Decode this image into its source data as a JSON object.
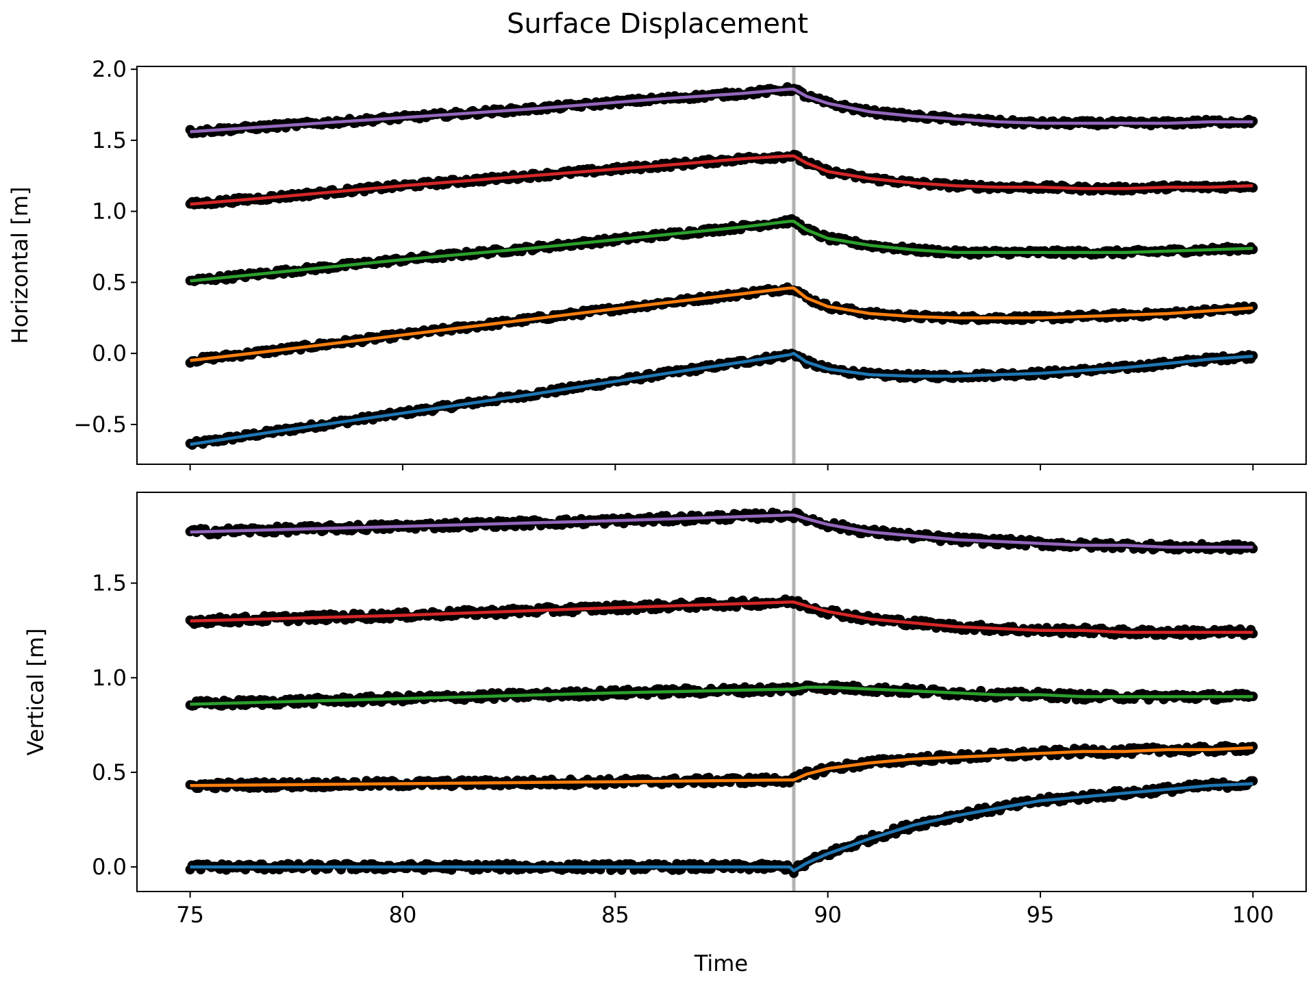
{
  "chart_data": {
    "title": "Surface Displacement",
    "xlabel": "Time",
    "xlim": [
      73.75,
      101.25
    ],
    "xticks": [
      75,
      80,
      85,
      90,
      95,
      100
    ],
    "event_line": {
      "x": 89.2,
      "color": "#b3b3b3"
    },
    "marker_color": "#000000",
    "panels": [
      {
        "type": "line",
        "ylabel": "Horizontal [m]",
        "ylim": [
          -0.78,
          2.02
        ],
        "yticks": [
          -0.5,
          0.0,
          0.5,
          1.0,
          1.5,
          2.0
        ],
        "ytick_labels": [
          "−0.5",
          "0.0",
          "0.5",
          "1.0",
          "1.5",
          "2.0"
        ],
        "series": [
          {
            "color": "#1f77b4",
            "x": [
              75,
              77,
              80,
              83,
              86,
              88,
              89.1,
              89.2,
              89.5,
              90,
              91,
              92,
              93,
              94,
              95,
              96,
              97,
              98,
              99,
              100
            ],
            "values": [
              -0.64,
              -0.55,
              -0.42,
              -0.29,
              -0.15,
              -0.06,
              -0.01,
              0.0,
              -0.06,
              -0.11,
              -0.15,
              -0.16,
              -0.16,
              -0.15,
              -0.14,
              -0.12,
              -0.1,
              -0.07,
              -0.04,
              -0.02
            ]
          },
          {
            "color": "#ff7f0e",
            "x": [
              75,
              77,
              80,
              83,
              86,
              88,
              89.1,
              89.2,
              89.5,
              90,
              91,
              92,
              93,
              94,
              95,
              96,
              97,
              98,
              99,
              100
            ],
            "values": [
              -0.05,
              0.02,
              0.13,
              0.24,
              0.35,
              0.42,
              0.46,
              0.46,
              0.39,
              0.33,
              0.28,
              0.26,
              0.25,
              0.25,
              0.25,
              0.26,
              0.27,
              0.28,
              0.3,
              0.32
            ]
          },
          {
            "color": "#2ca02c",
            "x": [
              75,
              77,
              80,
              83,
              86,
              88,
              89.1,
              89.2,
              89.5,
              90,
              91,
              92,
              93,
              94,
              95,
              96,
              97,
              98,
              99,
              100
            ],
            "values": [
              0.51,
              0.57,
              0.66,
              0.74,
              0.83,
              0.89,
              0.93,
              0.93,
              0.87,
              0.81,
              0.76,
              0.73,
              0.71,
              0.71,
              0.71,
              0.71,
              0.71,
              0.72,
              0.73,
              0.74
            ]
          },
          {
            "color": "#d62728",
            "x": [
              75,
              77,
              80,
              83,
              86,
              88,
              89.1,
              89.2,
              89.5,
              90,
              91,
              92,
              93,
              94,
              95,
              96,
              97,
              98,
              99,
              100
            ],
            "values": [
              1.05,
              1.1,
              1.18,
              1.25,
              1.32,
              1.37,
              1.39,
              1.39,
              1.34,
              1.28,
              1.23,
              1.2,
              1.18,
              1.17,
              1.17,
              1.16,
              1.16,
              1.17,
              1.17,
              1.18
            ]
          },
          {
            "color": "#9467bd",
            "x": [
              75,
              77,
              80,
              83,
              86,
              88,
              89.1,
              89.2,
              89.5,
              90,
              91,
              92,
              93,
              94,
              95,
              96,
              97,
              98,
              99,
              100
            ],
            "values": [
              1.56,
              1.6,
              1.66,
              1.72,
              1.79,
              1.83,
              1.86,
              1.86,
              1.81,
              1.76,
              1.7,
              1.67,
              1.65,
              1.63,
              1.62,
              1.62,
              1.62,
              1.62,
              1.63,
              1.63
            ]
          }
        ]
      },
      {
        "type": "line",
        "ylabel": "Vertical [m]",
        "ylim": [
          -0.13,
          1.98
        ],
        "yticks": [
          0.0,
          0.5,
          1.0,
          1.5
        ],
        "ytick_labels": [
          "0.0",
          "0.5",
          "1.0",
          "1.5"
        ],
        "series": [
          {
            "color": "#1f77b4",
            "x": [
              75,
              80,
              85,
              89.1,
              89.2,
              89.5,
              90,
              90.5,
              91,
              92,
              93,
              94,
              95,
              96,
              97,
              98,
              99,
              100
            ],
            "values": [
              0.0,
              0.0,
              0.0,
              0.0,
              -0.02,
              0.02,
              0.07,
              0.11,
              0.15,
              0.22,
              0.27,
              0.31,
              0.35,
              0.37,
              0.39,
              0.41,
              0.43,
              0.44
            ]
          },
          {
            "color": "#ff7f0e",
            "x": [
              75,
              80,
              85,
              89.1,
              89.2,
              89.5,
              90,
              91,
              92,
              93,
              94,
              95,
              96,
              97,
              98,
              99,
              100
            ],
            "values": [
              0.43,
              0.44,
              0.45,
              0.46,
              0.46,
              0.49,
              0.52,
              0.55,
              0.57,
              0.58,
              0.59,
              0.6,
              0.61,
              0.61,
              0.62,
              0.62,
              0.63
            ]
          },
          {
            "color": "#2ca02c",
            "x": [
              75,
              80,
              85,
              89.1,
              89.2,
              89.5,
              90,
              91,
              92,
              93,
              94,
              95,
              96,
              97,
              98,
              99,
              100
            ],
            "values": [
              0.86,
              0.89,
              0.92,
              0.94,
              0.94,
              0.95,
              0.95,
              0.94,
              0.93,
              0.92,
              0.91,
              0.91,
              0.9,
              0.9,
              0.9,
              0.9,
              0.9
            ]
          },
          {
            "color": "#d62728",
            "x": [
              75,
              80,
              85,
              89.1,
              89.2,
              89.5,
              90,
              91,
              92,
              93,
              94,
              95,
              96,
              97,
              98,
              99,
              100
            ],
            "values": [
              1.3,
              1.33,
              1.37,
              1.4,
              1.4,
              1.38,
              1.35,
              1.31,
              1.29,
              1.27,
              1.26,
              1.25,
              1.25,
              1.24,
              1.24,
              1.24,
              1.24
            ]
          },
          {
            "color": "#9467bd",
            "x": [
              75,
              80,
              85,
              89.1,
              89.2,
              89.5,
              90,
              91,
              92,
              93,
              94,
              95,
              96,
              97,
              98,
              99,
              100
            ],
            "values": [
              1.77,
              1.8,
              1.83,
              1.86,
              1.86,
              1.84,
              1.81,
              1.77,
              1.75,
              1.73,
              1.72,
              1.71,
              1.7,
              1.7,
              1.69,
              1.69,
              1.69
            ]
          }
        ]
      }
    ]
  }
}
